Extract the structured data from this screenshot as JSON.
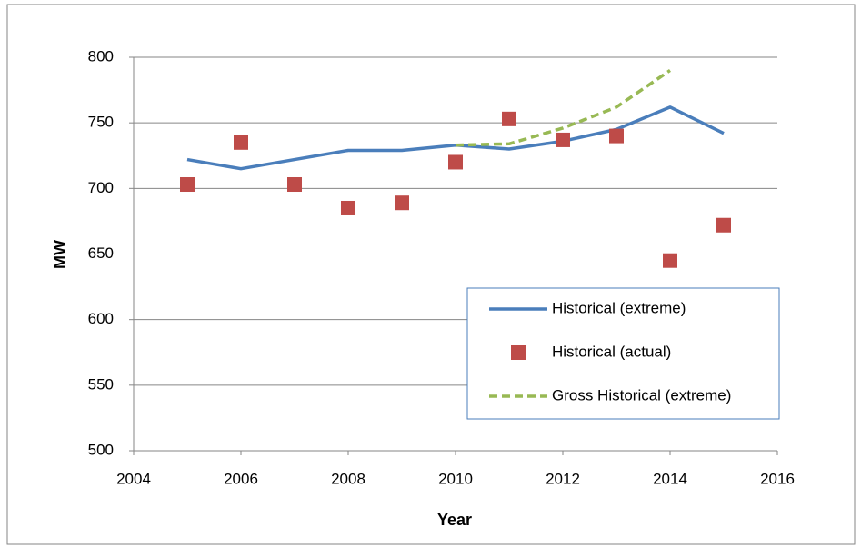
{
  "chart_data": {
    "type": "line",
    "x_label": "Year",
    "y_label": "MW",
    "xlim": [
      2004,
      2016
    ],
    "xticks": [
      2004,
      2006,
      2008,
      2010,
      2012,
      2014,
      2016
    ],
    "ylim": [
      500,
      800
    ],
    "yticks": [
      500,
      550,
      600,
      650,
      700,
      750,
      800
    ],
    "grid": true,
    "legend": "right",
    "series": [
      {
        "name": "Historical (extreme)",
        "color": "#4a7ebb",
        "style": "solid",
        "x": [
          2005,
          2006,
          2007,
          2008,
          2009,
          2010,
          2011,
          2012,
          2013,
          2014,
          2015
        ],
        "values": [
          722,
          715,
          722,
          729,
          729,
          733,
          730,
          736,
          745,
          762,
          742
        ]
      },
      {
        "name": "Historical (actual)",
        "color": "#be4b48",
        "style": "square",
        "x": [
          2005,
          2006,
          2007,
          2008,
          2009,
          2010,
          2011,
          2012,
          2013,
          2014,
          2015
        ],
        "values": [
          703,
          735,
          703,
          685,
          689,
          720,
          753,
          737,
          740,
          645,
          672
        ]
      },
      {
        "name": "Gross Historical (extreme)",
        "color": "#98b954",
        "style": "dashed",
        "x": [
          2010,
          2011,
          2012,
          2013,
          2014
        ],
        "values": [
          733,
          734,
          746,
          762,
          790
        ]
      }
    ]
  }
}
